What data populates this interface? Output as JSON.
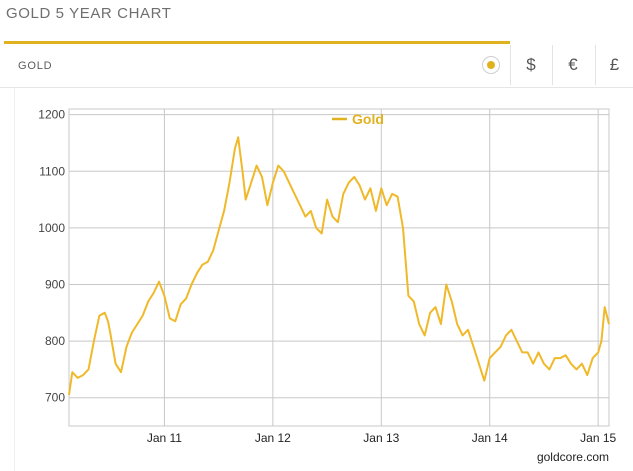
{
  "page_title": "GOLD 5 YEAR CHART",
  "tabs": {
    "gold_label": "GOLD"
  },
  "currency_buttons": [
    {
      "label": "$",
      "name": "usd"
    },
    {
      "label": "€",
      "name": "eur"
    },
    {
      "label": "£",
      "name": "gbp"
    }
  ],
  "colors": {
    "accent": "#e0b21f",
    "line": "#f0b92a",
    "grid": "#c8c8c8"
  },
  "chart_data": {
    "type": "line",
    "title": "",
    "xlabel": "",
    "ylabel": "",
    "ylim": [
      650,
      1210
    ],
    "yticks": [
      700,
      800,
      900,
      1000,
      1100,
      1200
    ],
    "xticks": [
      {
        "label": "Jan 11",
        "x": 1
      },
      {
        "label": "Jan 12",
        "x": 2
      },
      {
        "label": "Jan 13",
        "x": 3
      },
      {
        "label": "Jan 14",
        "x": 4
      },
      {
        "label": "Jan 15",
        "x": 5
      }
    ],
    "xlim": [
      0.12,
      5.1
    ],
    "grid": true,
    "legend": {
      "position": "top-center",
      "entries": [
        "Gold"
      ]
    },
    "credit": "goldcore.com",
    "series": [
      {
        "name": "Gold",
        "x": [
          0.12,
          0.15,
          0.2,
          0.25,
          0.3,
          0.35,
          0.4,
          0.45,
          0.48,
          0.5,
          0.55,
          0.6,
          0.65,
          0.7,
          0.75,
          0.8,
          0.85,
          0.9,
          0.95,
          1.0,
          1.05,
          1.1,
          1.15,
          1.2,
          1.25,
          1.3,
          1.35,
          1.4,
          1.45,
          1.5,
          1.55,
          1.6,
          1.65,
          1.68,
          1.7,
          1.72,
          1.75,
          1.8,
          1.85,
          1.9,
          1.95,
          2.0,
          2.05,
          2.1,
          2.15,
          2.2,
          2.25,
          2.3,
          2.35,
          2.4,
          2.45,
          2.5,
          2.55,
          2.6,
          2.65,
          2.7,
          2.75,
          2.8,
          2.85,
          2.9,
          2.95,
          3.0,
          3.05,
          3.1,
          3.15,
          3.2,
          3.25,
          3.3,
          3.35,
          3.4,
          3.45,
          3.5,
          3.55,
          3.6,
          3.65,
          3.7,
          3.75,
          3.8,
          3.85,
          3.9,
          3.95,
          4.0,
          4.05,
          4.1,
          4.15,
          4.2,
          4.25,
          4.3,
          4.35,
          4.4,
          4.45,
          4.5,
          4.55,
          4.6,
          4.65,
          4.7,
          4.75,
          4.8,
          4.85,
          4.9,
          4.95,
          5.0,
          5.03,
          5.06,
          5.1
        ],
        "values": [
          705,
          745,
          735,
          740,
          750,
          800,
          845,
          850,
          835,
          815,
          760,
          745,
          790,
          815,
          830,
          845,
          870,
          885,
          905,
          880,
          840,
          835,
          865,
          875,
          900,
          920,
          935,
          940,
          960,
          995,
          1030,
          1080,
          1140,
          1160,
          1130,
          1100,
          1050,
          1080,
          1110,
          1090,
          1040,
          1080,
          1110,
          1100,
          1080,
          1060,
          1040,
          1020,
          1030,
          1000,
          990,
          1050,
          1020,
          1010,
          1060,
          1080,
          1090,
          1075,
          1050,
          1070,
          1030,
          1070,
          1040,
          1060,
          1055,
          1000,
          880,
          870,
          830,
          810,
          850,
          860,
          830,
          900,
          870,
          830,
          810,
          820,
          790,
          760,
          730,
          770,
          780,
          790,
          810,
          820,
          800,
          780,
          780,
          760,
          780,
          760,
          750,
          770,
          770,
          775,
          760,
          750,
          760,
          740,
          770,
          780,
          800,
          860,
          830
        ]
      }
    ]
  }
}
